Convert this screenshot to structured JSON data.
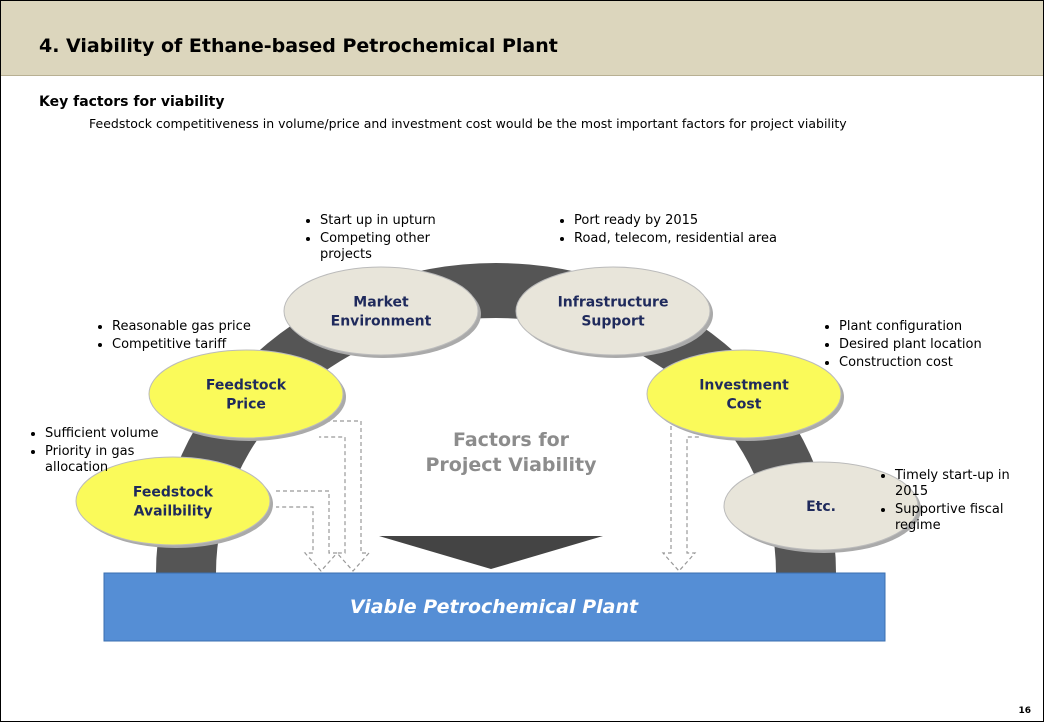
{
  "header": {
    "title": "4. Viability of Ethane-based Petrochemical Plant"
  },
  "section": {
    "title": "Key factors for viability",
    "text": "Feedstock competitiveness in volume/price and investment cost would be the most important factors for project viability"
  },
  "center": {
    "lines": [
      "Factors for",
      "Project Viability"
    ]
  },
  "result": "Viable Petrochemical Plant",
  "page_number": "16",
  "nodes": [
    {
      "label": [
        "Feedstock",
        "Availbility"
      ],
      "bullets": [
        "Sufficient volume",
        "Priority in gas allocation"
      ]
    },
    {
      "label": [
        "Feedstock",
        "Price"
      ],
      "bullets": [
        "Reasonable gas price",
        "Competitive tariff"
      ]
    },
    {
      "label": [
        "Market",
        "Environment"
      ],
      "bullets": [
        "Start up in upturn",
        "Competing other projects"
      ]
    },
    {
      "label": [
        "Infrastructure",
        "Support"
      ],
      "bullets": [
        "Port ready by 2015",
        "Road, telecom, residential area"
      ]
    },
    {
      "label": [
        "Investment",
        "Cost"
      ],
      "bullets": [
        "Plant configuration",
        "Desired plant location",
        "Construction cost"
      ]
    },
    {
      "label": [
        "Etc."
      ],
      "bullets": [
        "Timely start-up in 2015",
        "Supportive fiscal regime"
      ]
    }
  ]
}
